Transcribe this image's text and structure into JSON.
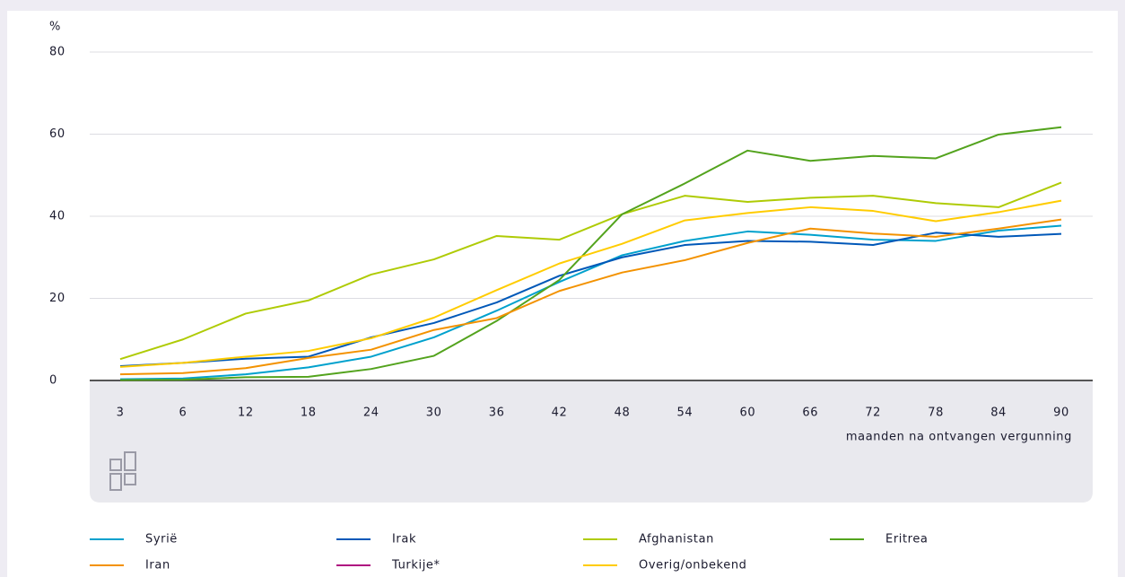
{
  "chart_data": {
    "type": "line",
    "y_label": "%",
    "x_label": "maanden na ontvangen vergunning",
    "categories": [
      "3",
      "6",
      "12",
      "18",
      "24",
      "30",
      "36",
      "42",
      "48",
      "54",
      "60",
      "66",
      "72",
      "78",
      "84",
      "90"
    ],
    "ylim": [
      0,
      80
    ],
    "yticks": [
      0,
      20,
      40,
      60,
      80
    ],
    "grid": true,
    "series": [
      {
        "name": "Syrië",
        "color": "#00a1cd",
        "values": [
          0.3,
          0.5,
          1.5,
          3.2,
          5.8,
          10.5,
          17,
          24,
          30.5,
          34,
          36.3,
          35.5,
          34.3,
          34,
          36.5,
          37.7
        ]
      },
      {
        "name": "Irak",
        "color": "#0058b8",
        "values": [
          3.5,
          4.3,
          5.3,
          5.8,
          10.5,
          14,
          19,
          25.5,
          30,
          33,
          34,
          33.8,
          33,
          36,
          35,
          35.7
        ]
      },
      {
        "name": "Afghanistan",
        "color": "#afcb05",
        "values": [
          5.2,
          10,
          16.3,
          19.5,
          25.8,
          29.5,
          35.2,
          34.3,
          40.5,
          45,
          43.5,
          44.5,
          45,
          43.2,
          42.2,
          48.2
        ]
      },
      {
        "name": "Eritrea",
        "color": "#53a31d",
        "values": [
          0.1,
          0.2,
          0.8,
          0.9,
          2.8,
          6,
          14.5,
          24.5,
          40.5,
          48,
          56,
          53.5,
          54.7,
          54.1,
          59.9,
          61.7
        ]
      },
      {
        "name": "Iran",
        "color": "#f39200",
        "values": [
          1.5,
          1.8,
          3,
          5.5,
          7.5,
          12.3,
          15.2,
          21.8,
          26.3,
          29.3,
          33.5,
          37,
          35.8,
          35,
          37,
          39.2
        ]
      },
      {
        "name": "Turkije*",
        "color": "#af0e80",
        "values": [
          null,
          null,
          null,
          null,
          null,
          null,
          null,
          null,
          null,
          null,
          null,
          null,
          null,
          null,
          null,
          null
        ]
      },
      {
        "name": "Overig/onbekend",
        "color": "#ffcc00",
        "values": [
          3.3,
          4.3,
          5.8,
          7.2,
          10.3,
          15.3,
          22,
          28.5,
          33.3,
          39,
          40.8,
          42.2,
          41.3,
          38.8,
          41,
          43.8
        ]
      }
    ]
  }
}
